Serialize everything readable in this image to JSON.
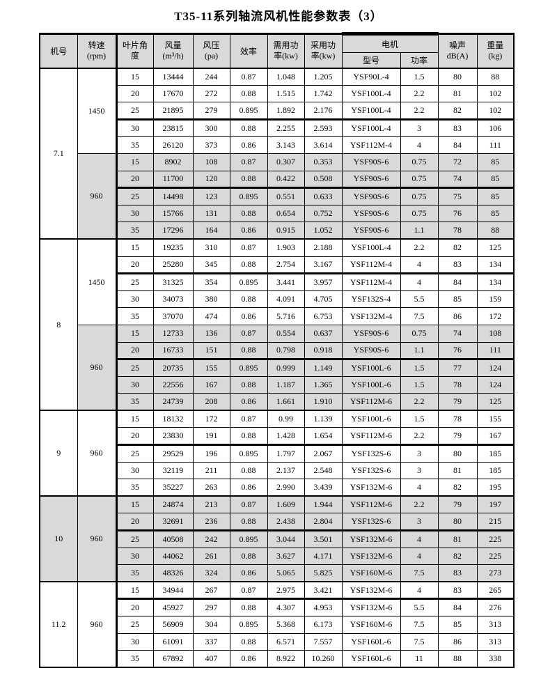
{
  "title": "T35-11系列轴流风机性能参数表（3）",
  "colors": {
    "shaded_row": "#d9d9d9",
    "header_bg": "#d9d9d9",
    "border": "#000000",
    "page_bg": "#ffffff"
  },
  "header": {
    "machine_no": "机号",
    "speed_l1": "转速",
    "speed_l2": "(rpm)",
    "blade_angle_l1": "叶片角",
    "blade_angle_l2": "度",
    "airflow_l1": "风量",
    "airflow_l2": "(m³/h)",
    "pressure_l1": "风压",
    "pressure_l2": "(pa)",
    "efficiency": "效率",
    "required_power_l1": "需用功",
    "required_power_l2": "率(kw)",
    "adopted_power_l1": "采用功",
    "adopted_power_l2": "率(kw)",
    "motor": "电机",
    "motor_model": "型号",
    "motor_power": "功率",
    "noise_l1": "噪声",
    "noise_l2": "dB(A)",
    "weight_l1": "重量",
    "weight_l2": "(kg)"
  },
  "column_keys": [
    "blade-angle",
    "airflow",
    "pressure",
    "efficiency",
    "required-power",
    "adopted-power",
    "motor-model",
    "motor-power",
    "noise",
    "weight"
  ],
  "thick_line_after_rows": [
    3,
    7,
    12,
    17,
    22,
    27,
    31
  ],
  "groups": [
    {
      "machine_no": "7.1",
      "shaded": false,
      "sections": [
        {
          "speed": "1450",
          "shaded": false,
          "rows": [
            [
              "15",
              "13444",
              "244",
              "0.87",
              "1.048",
              "1.205",
              "YSF90L-4",
              "1.5",
              "80",
              "88"
            ],
            [
              "20",
              "17670",
              "272",
              "0.88",
              "1.515",
              "1.742",
              "YSF100L-4",
              "2.2",
              "81",
              "102"
            ],
            [
              "25",
              "21895",
              "279",
              "0.895",
              "1.892",
              "2.176",
              "YSF100L-4",
              "2.2",
              "82",
              "102"
            ],
            [
              "30",
              "23815",
              "300",
              "0.88",
              "2.255",
              "2.593",
              "YSF100L-4",
              "3",
              "83",
              "106"
            ],
            [
              "35",
              "26120",
              "373",
              "0.86",
              "3.143",
              "3.614",
              "YSF112M-4",
              "4",
              "84",
              "111"
            ]
          ]
        },
        {
          "speed": "960",
          "shaded": true,
          "rows": [
            [
              "15",
              "8902",
              "108",
              "0.87",
              "0.307",
              "0.353",
              "YSF90S-6",
              "0.75",
              "72",
              "85"
            ],
            [
              "20",
              "11700",
              "120",
              "0.88",
              "0.422",
              "0.508",
              "YSF90S-6",
              "0.75",
              "74",
              "85"
            ],
            [
              "25",
              "14498",
              "123",
              "0.895",
              "0.551",
              "0.633",
              "YSF90S-6",
              "0.75",
              "75",
              "85"
            ],
            [
              "30",
              "15766",
              "131",
              "0.88",
              "0.654",
              "0.752",
              "YSF90S-6",
              "0.75",
              "76",
              "85"
            ],
            [
              "35",
              "17296",
              "164",
              "0.86",
              "0.915",
              "1.052",
              "YSF90S-6",
              "1.1",
              "78",
              "88"
            ]
          ]
        }
      ]
    },
    {
      "machine_no": "8",
      "shaded": false,
      "sections": [
        {
          "speed": "1450",
          "shaded": false,
          "rows": [
            [
              "15",
              "19235",
              "310",
              "0.87",
              "1.903",
              "2.188",
              "YSF100L-4",
              "2.2",
              "82",
              "125"
            ],
            [
              "20",
              "25280",
              "345",
              "0.88",
              "2.754",
              "3.167",
              "YSF112M-4",
              "4",
              "83",
              "134"
            ],
            [
              "25",
              "31325",
              "354",
              "0.895",
              "3.441",
              "3.957",
              "YSF112M-4",
              "4",
              "84",
              "134"
            ],
            [
              "30",
              "34073",
              "380",
              "0.88",
              "4.091",
              "4.705",
              "YSF132S-4",
              "5.5",
              "85",
              "159"
            ],
            [
              "35",
              "37070",
              "474",
              "0.86",
              "5.716",
              "6.753",
              "YSF132M-4",
              "7.5",
              "86",
              "172"
            ]
          ]
        },
        {
          "speed": "960",
          "shaded": true,
          "rows": [
            [
              "15",
              "12733",
              "136",
              "0.87",
              "0.554",
              "0.637",
              "YSF90S-6",
              "0.75",
              "74",
              "108"
            ],
            [
              "20",
              "16733",
              "151",
              "0.88",
              "0.798",
              "0.918",
              "YSF90S-6",
              "1.1",
              "76",
              "111"
            ],
            [
              "25",
              "20735",
              "155",
              "0.895",
              "0.999",
              "1.149",
              "YSF100L-6",
              "1.5",
              "77",
              "124"
            ],
            [
              "30",
              "22556",
              "167",
              "0.88",
              "1.187",
              "1.365",
              "YSF100L-6",
              "1.5",
              "78",
              "124"
            ],
            [
              "35",
              "24739",
              "208",
              "0.86",
              "1.661",
              "1.910",
              "YSF112M-6",
              "2.2",
              "79",
              "125"
            ]
          ]
        }
      ]
    },
    {
      "machine_no": "9",
      "shaded": false,
      "sections": [
        {
          "speed": "960",
          "shaded": false,
          "rows": [
            [
              "15",
              "18132",
              "172",
              "0.87",
              "0.99",
              "1.139",
              "YSF100L-6",
              "1.5",
              "78",
              "155"
            ],
            [
              "20",
              "23830",
              "191",
              "0.88",
              "1.428",
              "1.654",
              "YSF112M-6",
              "2.2",
              "79",
              "167"
            ],
            [
              "25",
              "29529",
              "196",
              "0.895",
              "1.797",
              "2.067",
              "YSF132S-6",
              "3",
              "80",
              "185"
            ],
            [
              "30",
              "32119",
              "211",
              "0.88",
              "2.137",
              "2.548",
              "YSF132S-6",
              "3",
              "81",
              "185"
            ],
            [
              "35",
              "35227",
              "263",
              "0.86",
              "2.990",
              "3.439",
              "YSF132M-6",
              "4",
              "82",
              "195"
            ]
          ]
        }
      ]
    },
    {
      "machine_no": "10",
      "shaded": true,
      "sections": [
        {
          "speed": "960",
          "shaded": true,
          "rows": [
            [
              "15",
              "24874",
              "213",
              "0.87",
              "1.609",
              "1.944",
              "YSF112M-6",
              "2.2",
              "79",
              "197"
            ],
            [
              "20",
              "32691",
              "236",
              "0.88",
              "2.438",
              "2.804",
              "YSF132S-6",
              "3",
              "80",
              "215"
            ],
            [
              "25",
              "40508",
              "242",
              "0.895",
              "3.044",
              "3.501",
              "YSF132M-6",
              "4",
              "81",
              "225"
            ],
            [
              "30",
              "44062",
              "261",
              "0.88",
              "3.627",
              "4.171",
              "YSF132M-6",
              "4",
              "82",
              "225"
            ],
            [
              "35",
              "48326",
              "324",
              "0.86",
              "5.065",
              "5.825",
              "YSF160M-6",
              "7.5",
              "83",
              "273"
            ]
          ]
        }
      ]
    },
    {
      "machine_no": "11.2",
      "shaded": false,
      "sections": [
        {
          "speed": "960",
          "shaded": false,
          "rows": [
            [
              "15",
              "34944",
              "267",
              "0.87",
              "2.975",
              "3.421",
              "YSF132M-6",
              "4",
              "83",
              "265"
            ],
            [
              "20",
              "45927",
              "297",
              "0.88",
              "4.307",
              "4.953",
              "YSF132M-6",
              "5.5",
              "84",
              "276"
            ],
            [
              "25",
              "56909",
              "304",
              "0.895",
              "5.368",
              "6.173",
              "YSF160M-6",
              "7.5",
              "85",
              "313"
            ],
            [
              "30",
              "61091",
              "337",
              "0.88",
              "6.571",
              "7.557",
              "YSF160L-6",
              "7.5",
              "86",
              "313"
            ],
            [
              "35",
              "67892",
              "407",
              "0.86",
              "8.922",
              "10.260",
              "YSF160L-6",
              "11",
              "88",
              "338"
            ]
          ]
        }
      ]
    }
  ]
}
